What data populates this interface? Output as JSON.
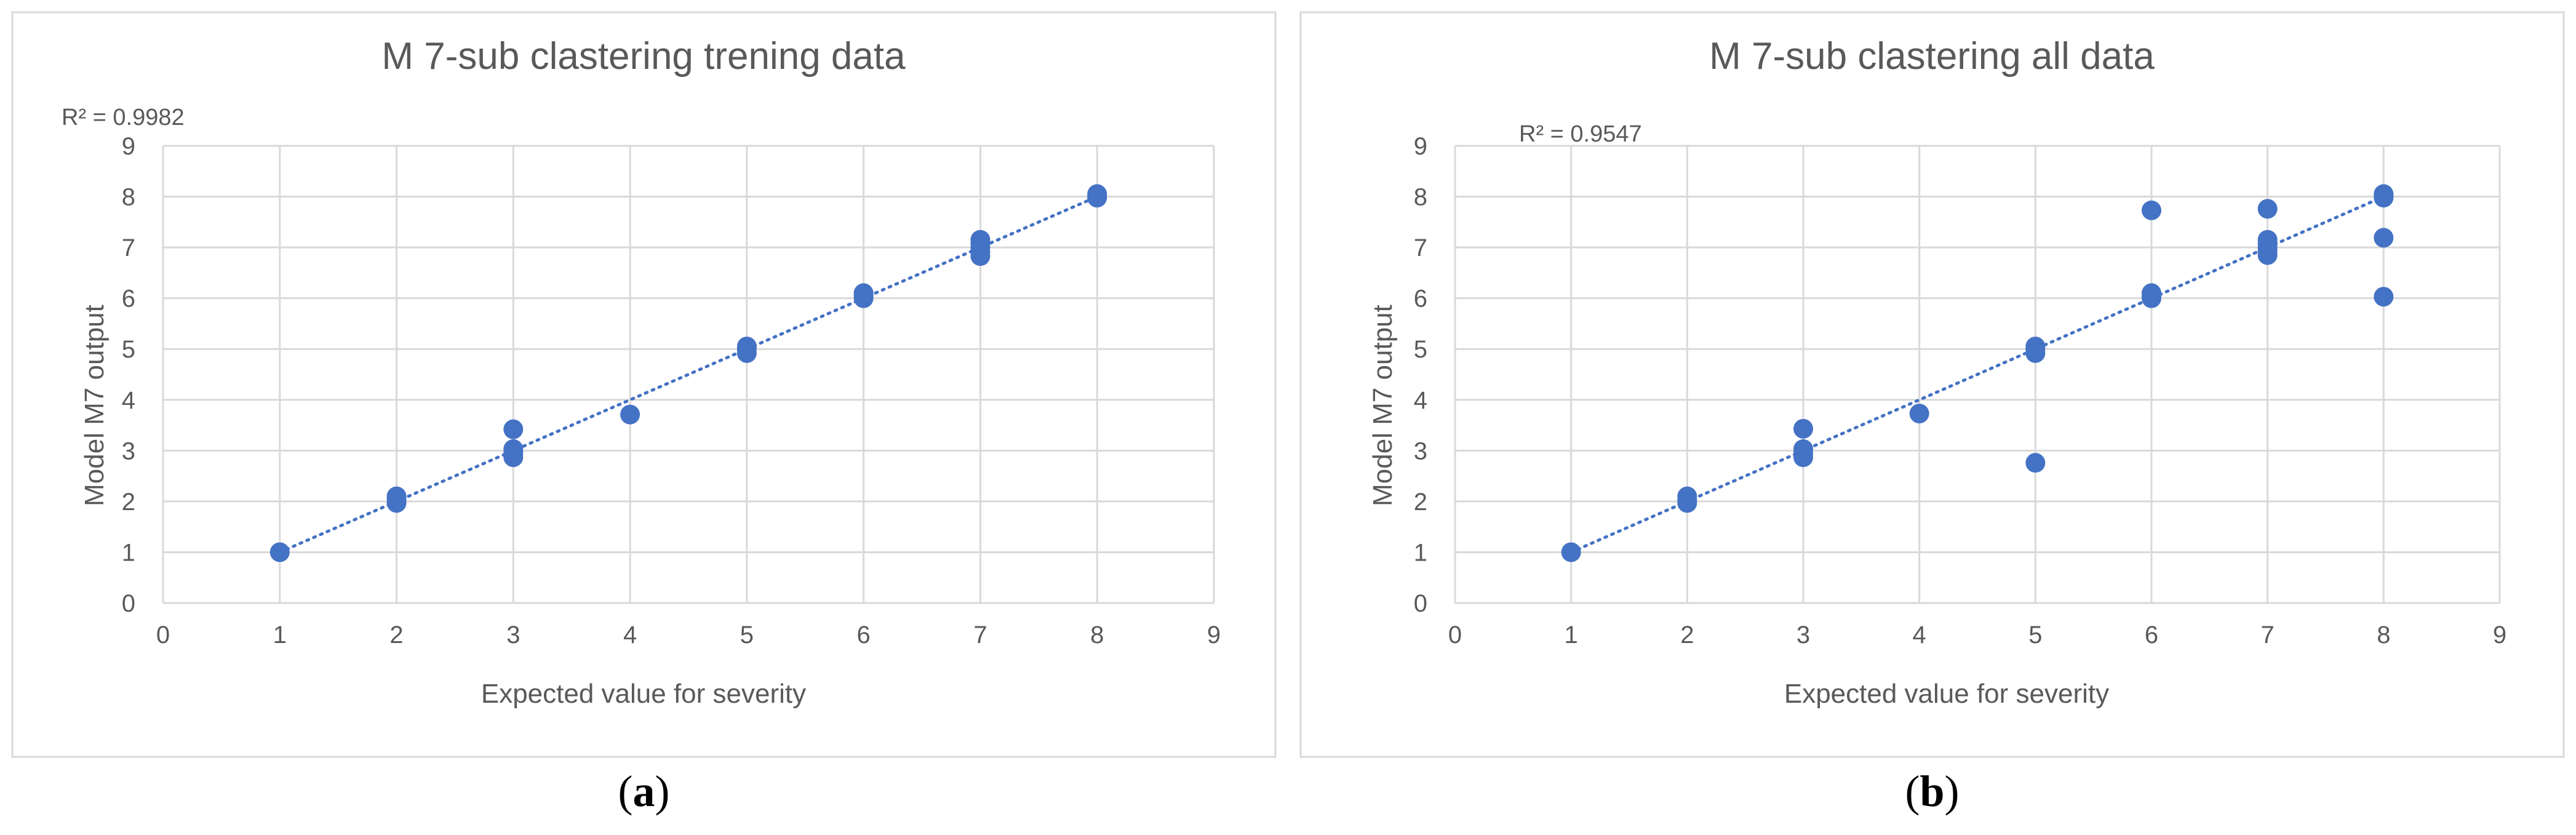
{
  "chart_data": [
    {
      "type": "scatter",
      "panel_label": "a",
      "title": "M 7-sub clastering trening data",
      "xlabel": "Expected value for severity",
      "ylabel": "Model M7 output",
      "xlim": [
        0,
        9
      ],
      "ylim": [
        0,
        9
      ],
      "xticks": [
        "0",
        "1",
        "2",
        "3",
        "4",
        "5",
        "6",
        "7",
        "8",
        "9"
      ],
      "yticks": [
        "0",
        "1",
        "2",
        "3",
        "4",
        "5",
        "6",
        "7",
        "8",
        "9"
      ],
      "grid": true,
      "r2_label": "R² = 0.9982",
      "trendline": {
        "type": "linear",
        "style": "dotted",
        "x": [
          1,
          8
        ],
        "y": [
          1.0,
          8.0
        ]
      },
      "series": [
        {
          "color": "#4472C4",
          "points": [
            [
              1,
              1.0
            ],
            [
              2,
              1.97
            ],
            [
              2,
              2.03
            ],
            [
              2,
              2.1
            ],
            [
              3,
              2.87
            ],
            [
              3,
              2.95
            ],
            [
              3,
              3.03
            ],
            [
              3,
              3.42
            ],
            [
              4,
              3.71
            ],
            [
              5,
              4.92
            ],
            [
              5,
              5.0
            ],
            [
              5,
              5.05
            ],
            [
              6,
              6.0
            ],
            [
              6,
              6.05
            ],
            [
              6,
              6.1
            ],
            [
              7,
              6.83
            ],
            [
              7,
              6.92
            ],
            [
              7,
              7.0
            ],
            [
              7,
              7.08
            ],
            [
              7,
              7.15
            ],
            [
              8,
              7.98
            ],
            [
              8,
              8.02
            ],
            [
              8,
              8.05
            ]
          ]
        }
      ]
    },
    {
      "type": "scatter",
      "panel_label": "b",
      "title": "M 7-sub clastering all data",
      "xlabel": "Expected value for severity",
      "ylabel": "Model M7 output",
      "xlim": [
        0,
        9
      ],
      "ylim": [
        0,
        9
      ],
      "xticks": [
        "0",
        "1",
        "2",
        "3",
        "4",
        "5",
        "6",
        "7",
        "8",
        "9"
      ],
      "yticks": [
        "0",
        "1",
        "2",
        "3",
        "4",
        "5",
        "6",
        "7",
        "8",
        "9"
      ],
      "grid": true,
      "r2_label": "R² = 0.9547",
      "trendline": {
        "type": "linear",
        "style": "dotted",
        "x": [
          1,
          8
        ],
        "y": [
          1.0,
          8.0
        ]
      },
      "series": [
        {
          "color": "#4472C4",
          "points": [
            [
              1,
              1.0
            ],
            [
              2,
              1.97
            ],
            [
              2,
              2.03
            ],
            [
              2,
              2.1
            ],
            [
              3,
              2.87
            ],
            [
              3,
              2.95
            ],
            [
              3,
              3.03
            ],
            [
              3,
              3.43
            ],
            [
              4,
              3.73
            ],
            [
              5,
              2.76
            ],
            [
              5,
              4.92
            ],
            [
              5,
              5.0
            ],
            [
              5,
              5.05
            ],
            [
              6,
              6.0
            ],
            [
              6,
              6.05
            ],
            [
              6,
              6.1
            ],
            [
              6,
              7.73
            ],
            [
              7,
              6.85
            ],
            [
              7,
              6.93
            ],
            [
              7,
              7.0
            ],
            [
              7,
              7.08
            ],
            [
              7,
              7.15
            ],
            [
              7,
              7.76
            ],
            [
              8,
              6.03
            ],
            [
              8,
              7.19
            ],
            [
              8,
              7.98
            ],
            [
              8,
              8.02
            ],
            [
              8,
              8.05
            ]
          ]
        }
      ]
    }
  ]
}
